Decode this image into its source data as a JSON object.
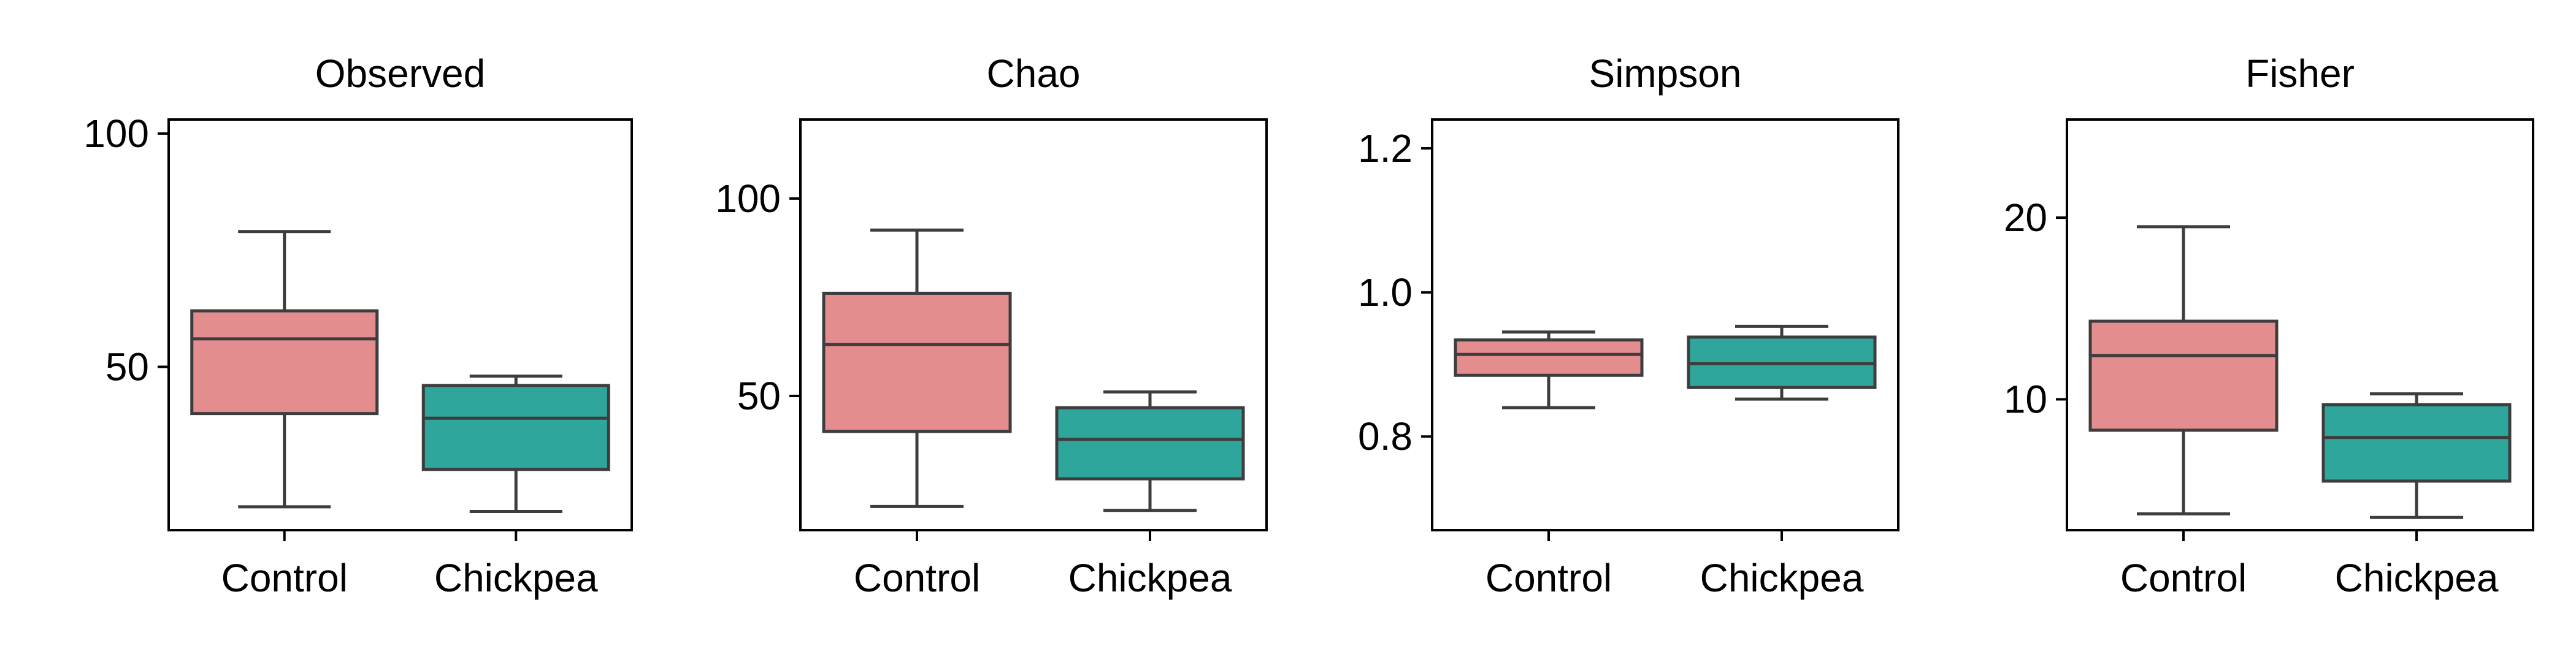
{
  "chart_data": [
    {
      "type": "box",
      "title": "Observed",
      "categories": [
        "Control",
        "Chickpea"
      ],
      "colors": [
        "#e38d8f",
        "#2ea69c"
      ],
      "ylim": [
        15,
        103
      ],
      "yticks": [
        50,
        100
      ],
      "yticklabels": [
        "50",
        "100"
      ],
      "boxes": [
        {
          "category": "Control",
          "whisker_low": 20,
          "q1": 40,
          "median": 56,
          "q3": 62,
          "whisker_high": 79
        },
        {
          "category": "Chickpea",
          "whisker_low": 19,
          "q1": 28,
          "median": 39,
          "q3": 46,
          "whisker_high": 48
        }
      ]
    },
    {
      "type": "box",
      "title": "Chao",
      "categories": [
        "Control",
        "Chickpea"
      ],
      "colors": [
        "#e38d8f",
        "#2ea69c"
      ],
      "ylim": [
        16,
        120
      ],
      "yticks": [
        50,
        100
      ],
      "yticklabels": [
        "50",
        "100"
      ],
      "boxes": [
        {
          "category": "Control",
          "whisker_low": 22,
          "q1": 41,
          "median": 63,
          "q3": 76,
          "whisker_high": 92
        },
        {
          "category": "Chickpea",
          "whisker_low": 21,
          "q1": 29,
          "median": 39,
          "q3": 47,
          "whisker_high": 51
        }
      ]
    },
    {
      "type": "box",
      "title": "Simpson",
      "categories": [
        "Control",
        "Chickpea"
      ],
      "colors": [
        "#e38d8f",
        "#2ea69c"
      ],
      "ylim": [
        0.67,
        1.24
      ],
      "yticks": [
        0.8,
        1.0,
        1.2
      ],
      "yticklabels": [
        "0.8",
        "1.0",
        "1.2"
      ],
      "boxes": [
        {
          "category": "Control",
          "whisker_low": 0.84,
          "q1": 0.885,
          "median": 0.914,
          "q3": 0.934,
          "whisker_high": 0.945
        },
        {
          "category": "Chickpea",
          "whisker_low": 0.852,
          "q1": 0.868,
          "median": 0.901,
          "q3": 0.938,
          "whisker_high": 0.953
        }
      ]
    },
    {
      "type": "box",
      "title": "Fisher",
      "categories": [
        "Control",
        "Chickpea"
      ],
      "colors": [
        "#e38d8f",
        "#2ea69c"
      ],
      "ylim": [
        2.8,
        25.4
      ],
      "yticks": [
        10,
        20
      ],
      "yticklabels": [
        "10",
        "20"
      ],
      "boxes": [
        {
          "category": "Control",
          "whisker_low": 3.7,
          "q1": 8.3,
          "median": 12.4,
          "q3": 14.3,
          "whisker_high": 19.5
        },
        {
          "category": "Chickpea",
          "whisker_low": 3.5,
          "q1": 5.5,
          "median": 7.9,
          "q3": 9.7,
          "whisker_high": 10.3
        }
      ]
    }
  ]
}
